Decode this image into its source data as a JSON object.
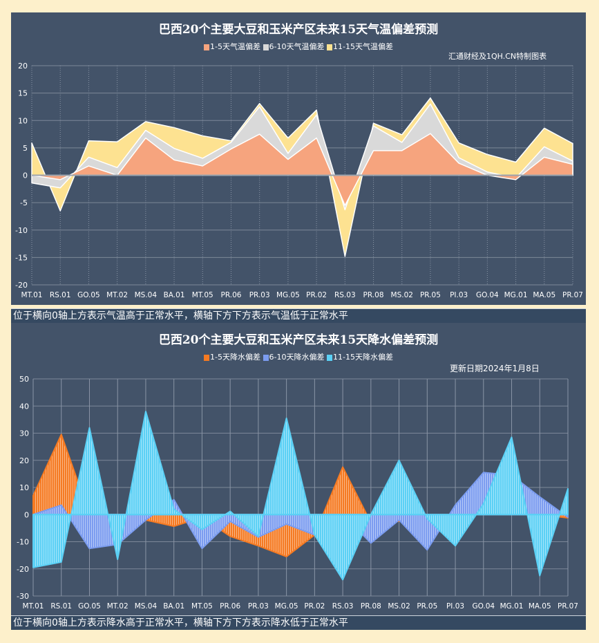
{
  "chart_data": [
    {
      "type": "area",
      "title": "巴西20个主要大豆和玉米产区未来15天气温偏差预测",
      "note": "汇通财经及1QH.CN特制图表",
      "caption": "位于横向0轴上方表示气温高于正常水平，横轴下方下方表示气温低于正常水平",
      "categories": [
        "MT.01",
        "RS.01",
        "GO.05",
        "MT.02",
        "MS.04",
        "BA.01",
        "MT.05",
        "PR.06",
        "PR.03",
        "MG.05",
        "PR.02",
        "RS.03",
        "PR.08",
        "MS.02",
        "PR.05",
        "PI.03",
        "GO.04",
        "MG.01",
        "MA.05",
        "PR.07"
      ],
      "ylim": [
        -20,
        20
      ],
      "yticks": [
        20,
        15,
        10,
        5,
        0,
        -5,
        -10,
        -15,
        -20
      ],
      "grid": true,
      "legend": "top",
      "series": [
        {
          "name": "1-5天气温偏差",
          "color": "#f6a47e",
          "values": [
            0,
            -0.8,
            1.7,
            0,
            6.8,
            2.8,
            1.7,
            4.8,
            7.5,
            2.9,
            6.8,
            -5.5,
            4.5,
            4.5,
            7.6,
            2.2,
            0,
            -0.8,
            3.3,
            2.0
          ]
        },
        {
          "name": "6-10天气温偏差",
          "color": "#d9d9d9",
          "values": [
            -1.4,
            -2.3,
            3.3,
            1.4,
            8.2,
            4.9,
            3.1,
            6.0,
            12.5,
            4.0,
            11.0,
            -6.3,
            9.0,
            6.0,
            13.0,
            3.2,
            0.6,
            -0.5,
            5.2,
            2.6
          ]
        },
        {
          "name": "11-15天气温偏差",
          "color": "#fde291",
          "values": [
            5.9,
            -6.5,
            6.3,
            6.1,
            9.8,
            8.7,
            7.2,
            6.3,
            13.1,
            6.8,
            11.9,
            -14.8,
            9.5,
            7.4,
            14.1,
            5.9,
            3.8,
            2.4,
            8.6,
            5.8
          ]
        }
      ]
    },
    {
      "type": "area",
      "title": "巴西20个主要大豆和玉米产区未来15天降水偏差预测",
      "note": "更新日期2024年1月8日",
      "caption": "位于横向0轴上方表示降水高于正常水平，横轴下方下方表示降水低于正常水平",
      "categories": [
        "MT.01",
        "RS.01",
        "GO.05",
        "MT.02",
        "MS.04",
        "BA.01",
        "MT.05",
        "PR.06",
        "PR.03",
        "MG.05",
        "PR.02",
        "RS.03",
        "PR.08",
        "MS.02",
        "PR.05",
        "PI.03",
        "GO.04",
        "MG.01",
        "MA.05",
        "PR.07"
      ],
      "ylim": [
        -30,
        50
      ],
      "yticks": [
        50,
        40,
        30,
        20,
        10,
        0,
        -10,
        -20,
        -30
      ],
      "grid": true,
      "legend": "top",
      "series": [
        {
          "name": "1-5天降水偏差",
          "color": "#f57a22",
          "values": [
            7,
            29.5,
            0,
            0,
            -2,
            -4.3,
            -1,
            -8,
            -11.5,
            -15.5,
            -7.5,
            17.5,
            -3,
            -2.5,
            0,
            0,
            0,
            0,
            0,
            -1.2
          ]
        },
        {
          "name": "6-10天降水偏差",
          "color": "#7b9cf0",
          "values": [
            0,
            3.5,
            -12.5,
            -11,
            -2,
            5.5,
            -12.5,
            -2.5,
            -8.3,
            -3.5,
            -7.5,
            0,
            -10.5,
            -2,
            -13,
            3.5,
            15.5,
            14.5,
            6.5,
            -1
          ]
        },
        {
          "name": "11-15天降水偏差",
          "color": "#5bd0f5",
          "values": [
            -19.5,
            -17.5,
            32,
            -16.5,
            38,
            2,
            -5.5,
            1.2,
            -8,
            35.5,
            -7.5,
            -24,
            0,
            20,
            -1.5,
            -11.5,
            4,
            28.5,
            -22.5,
            9.5
          ]
        }
      ]
    }
  ]
}
